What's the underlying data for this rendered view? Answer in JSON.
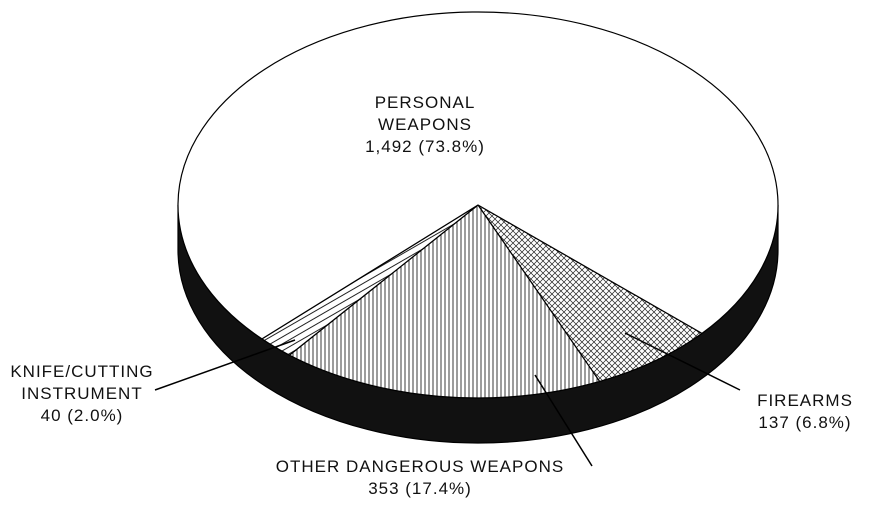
{
  "chart_data": {
    "type": "pie",
    "categories": [
      "FIREARMS",
      "OTHER DANGEROUS WEAPONS",
      "KNIFE/CUTTING INSTRUMENT",
      "PERSONAL WEAPONS"
    ],
    "values": [
      137,
      353,
      40,
      1492
    ],
    "value_labels": [
      "137 (6.8%)",
      "353 (17.4%)",
      "40 (2.0%)",
      "1,492 (73.8%)"
    ]
  }
}
